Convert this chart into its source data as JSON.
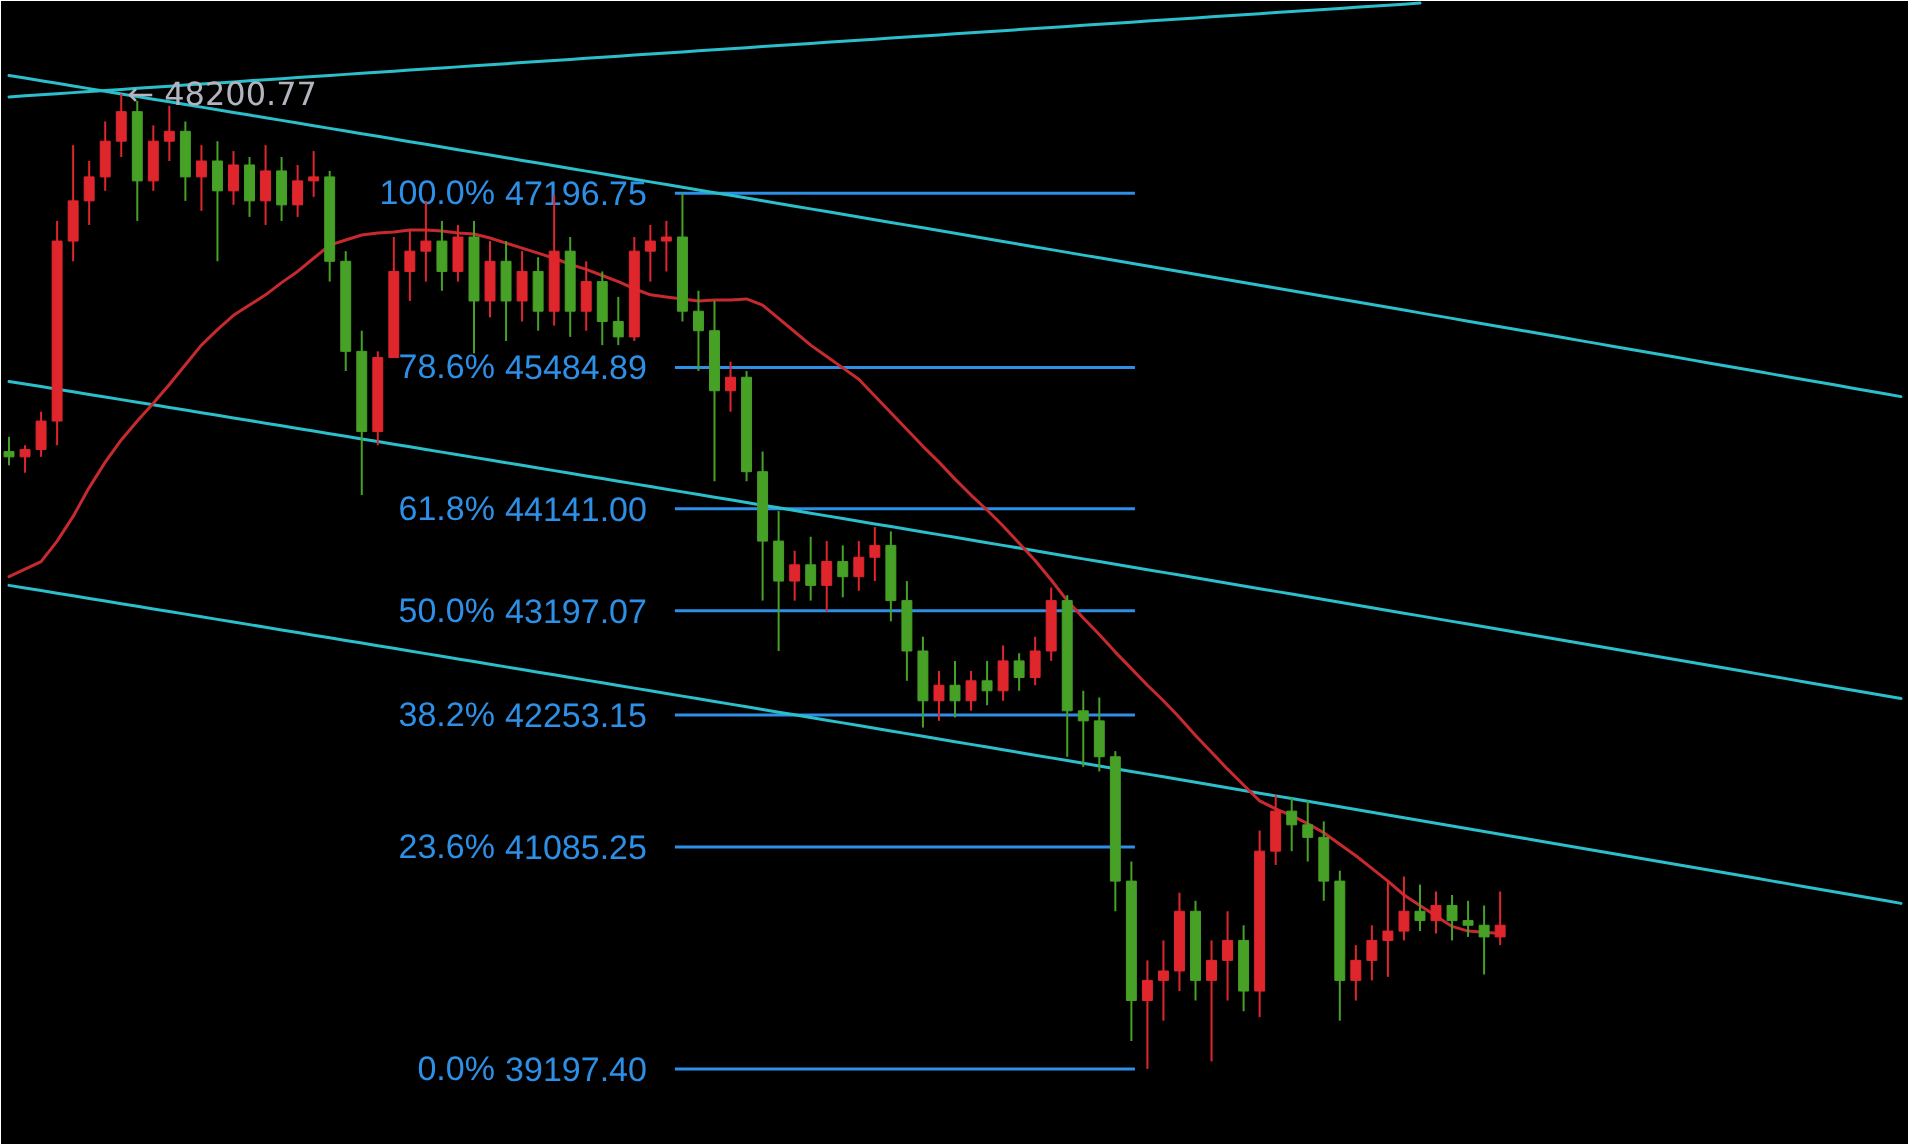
{
  "chart_data": {
    "type": "candlestick",
    "log": true,
    "tick_labels": "y",
    "ylim": [
      38570,
      49160
    ],
    "yticks": [
      47196.75,
      45484.89,
      {
        "value": 44141.0,
        "label": "44141.00"
      },
      43197.07,
      42253.15,
      41085.25,
      {
        "value": 39197.4,
        "label": "39197.40"
      }
    ],
    "ref_lines": [
      {
        "axis": "y",
        "value": 47196.75,
        "color": "#2d8fe6"
      },
      {
        "axis": "y",
        "value": 45484.89,
        "color": "#2d8fe6"
      },
      {
        "axis": "y",
        "value": 44141.0,
        "color": "#2d8fe6"
      },
      {
        "axis": "y",
        "value": 43197.07,
        "color": "#2d8fe6"
      },
      {
        "axis": "y",
        "value": 42253.15,
        "color": "#2d8fe6"
      },
      {
        "axis": "y",
        "value": 41085.25,
        "color": "#2d8fe6"
      },
      {
        "axis": "y",
        "value": 39197.4,
        "color": "#2d8fe6"
      }
    ],
    "categories": [
      null,
      null,
      null,
      null,
      null,
      null,
      null,
      null,
      null,
      null,
      null,
      null,
      null,
      null,
      null,
      null,
      null,
      null,
      null,
      null,
      null,
      null,
      null,
      null,
      null,
      null,
      null,
      null,
      null,
      null,
      null,
      null,
      null,
      null,
      null,
      null,
      null,
      null,
      null,
      null,
      null,
      null,
      null,
      null,
      null,
      null,
      null,
      null,
      null,
      null,
      null,
      null,
      null,
      null,
      null,
      null,
      null,
      null,
      null,
      null,
      null,
      null,
      null,
      null,
      null,
      null,
      null,
      null,
      null,
      null,
      null,
      null,
      null,
      null,
      null,
      null,
      null,
      null,
      null,
      null,
      null,
      null,
      null,
      null,
      null,
      null,
      null,
      null,
      null,
      null,
      null,
      null,
      null,
      null,
      null,
      null,
      null,
      null,
      null,
      null,
      null,
      null,
      null,
      null,
      null,
      null,
      null,
      null,
      null,
      null,
      null,
      null,
      null,
      null,
      null,
      null,
      null,
      null,
      null
    ],
    "ohlc": [
      [
        44680,
        44820,
        44550,
        44630
      ],
      [
        44630,
        44740,
        44480,
        44700
      ],
      [
        44700,
        45060,
        44630,
        44970
      ],
      [
        44970,
        46920,
        44740,
        46720
      ],
      [
        46720,
        47680,
        46520,
        47120
      ],
      [
        47120,
        47520,
        46880,
        47360
      ],
      [
        47360,
        47920,
        47220,
        47720
      ],
      [
        47720,
        48200.77,
        47560,
        48020
      ],
      [
        48020,
        48130,
        46920,
        47320
      ],
      [
        47320,
        47880,
        47220,
        47720
      ],
      [
        47720,
        48080,
        47520,
        47820
      ],
      [
        47820,
        47920,
        47120,
        47360
      ],
      [
        47360,
        47680,
        47020,
        47520
      ],
      [
        47520,
        47720,
        46520,
        47220
      ],
      [
        47220,
        47620,
        47080,
        47480
      ],
      [
        47480,
        47560,
        46960,
        47120
      ],
      [
        47120,
        47680,
        46880,
        47420
      ],
      [
        47420,
        47560,
        46920,
        47080
      ],
      [
        47080,
        47480,
        46960,
        47320
      ],
      [
        47320,
        47620,
        47160,
        47360
      ],
      [
        47360,
        47420,
        46320,
        46520
      ],
      [
        46520,
        46620,
        45450,
        45640
      ],
      [
        45640,
        45840,
        44270,
        44870
      ],
      [
        44870,
        45640,
        44740,
        45580
      ],
      [
        45580,
        46760,
        45580,
        46420
      ],
      [
        46420,
        46820,
        46130,
        46620
      ],
      [
        46620,
        47120,
        46320,
        46720
      ],
      [
        46720,
        46920,
        46230,
        46420
      ],
      [
        46420,
        46880,
        46320,
        46760
      ],
      [
        46760,
        46920,
        45620,
        46130
      ],
      [
        46130,
        46720,
        45970,
        46520
      ],
      [
        46520,
        46720,
        45740,
        46130
      ],
      [
        46130,
        46620,
        45930,
        46420
      ],
      [
        46420,
        46560,
        45840,
        46030
      ],
      [
        46030,
        47180,
        45890,
        46620
      ],
      [
        46620,
        46760,
        45780,
        46030
      ],
      [
        46030,
        46520,
        45840,
        46320
      ],
      [
        46320,
        46420,
        45700,
        45930
      ],
      [
        45930,
        46170,
        45700,
        45780
      ],
      [
        45780,
        46760,
        45740,
        46620
      ],
      [
        46620,
        46880,
        46320,
        46720
      ],
      [
        46720,
        46920,
        46420,
        46760
      ],
      [
        46760,
        47196.75,
        45930,
        46030
      ],
      [
        46030,
        46230,
        45450,
        45840
      ],
      [
        45840,
        46130,
        44400,
        45260
      ],
      [
        45260,
        45540,
        45060,
        45390
      ],
      [
        45390,
        45450,
        44400,
        44490
      ],
      [
        44490,
        44680,
        43290,
        43840
      ],
      [
        43840,
        44120,
        42830,
        43470
      ],
      [
        43470,
        43750,
        43290,
        43620
      ],
      [
        43620,
        43880,
        43290,
        43430
      ],
      [
        43430,
        43840,
        43190,
        43650
      ],
      [
        43650,
        43800,
        43320,
        43510
      ],
      [
        43510,
        43840,
        43380,
        43690
      ],
      [
        43690,
        43970,
        43470,
        43800
      ],
      [
        43800,
        43930,
        43100,
        43290
      ],
      [
        43290,
        43470,
        42560,
        42830
      ],
      [
        42830,
        42960,
        42140,
        42380
      ],
      [
        42380,
        42650,
        42200,
        42520
      ],
      [
        42520,
        42740,
        42230,
        42380
      ],
      [
        42380,
        42650,
        42290,
        42560
      ],
      [
        42560,
        42740,
        42340,
        42470
      ],
      [
        42470,
        42880,
        42380,
        42740
      ],
      [
        42740,
        42810,
        42470,
        42590
      ],
      [
        42590,
        42960,
        42520,
        42830
      ],
      [
        42830,
        43410,
        42740,
        43290
      ],
      [
        43290,
        43340,
        41880,
        42290
      ],
      [
        42290,
        42470,
        41790,
        42200
      ],
      [
        42200,
        42410,
        41750,
        41880
      ],
      [
        41880,
        41930,
        40530,
        40790
      ],
      [
        40790,
        40960,
        39430,
        39770
      ],
      [
        39770,
        40110,
        39197.4,
        39940
      ],
      [
        39940,
        40280,
        39600,
        40020
      ],
      [
        40020,
        40690,
        39850,
        40530
      ],
      [
        40530,
        40620,
        39770,
        39940
      ],
      [
        39940,
        40280,
        39260,
        40110
      ],
      [
        40110,
        40530,
        39770,
        40280
      ],
      [
        40280,
        40410,
        39680,
        39850
      ],
      [
        39850,
        41230,
        39630,
        41050
      ],
      [
        41050,
        41540,
        40930,
        41400
      ],
      [
        41400,
        41520,
        41050,
        41280
      ],
      [
        41280,
        41490,
        40960,
        41170
      ],
      [
        41170,
        41310,
        40620,
        40790
      ],
      [
        40790,
        40880,
        39600,
        39940
      ],
      [
        39940,
        40240,
        39770,
        40110
      ],
      [
        40110,
        40410,
        39940,
        40280
      ],
      [
        40280,
        40790,
        39970,
        40360
      ],
      [
        40360,
        40830,
        40280,
        40530
      ],
      [
        40530,
        40760,
        40360,
        40450
      ],
      [
        40450,
        40700,
        40340,
        40580
      ],
      [
        40580,
        40670,
        40280,
        40450
      ],
      [
        40450,
        40620,
        40310,
        40410
      ],
      [
        40410,
        40580,
        39990,
        40310
      ],
      [
        40310,
        40700,
        40240,
        40410
      ],
      null,
      null,
      null,
      null,
      null,
      null,
      null,
      null,
      null,
      null,
      null,
      null,
      null,
      null,
      null,
      null,
      null,
      null,
      null,
      null,
      null,
      null,
      null,
      null,
      null
    ],
    "colors": [
      "#46a126",
      "#e0262d",
      "#e0262d",
      "#e0262d",
      "#e0262d",
      "#e0262d",
      "#e0262d",
      "#e0262d",
      "#46a126",
      "#e0262d",
      "#e0262d",
      "#46a126",
      "#e0262d",
      "#46a126",
      "#e0262d",
      "#46a126",
      "#e0262d",
      "#46a126",
      "#e0262d",
      "#e0262d",
      "#46a126",
      "#46a126",
      "#46a126",
      "#e0262d",
      "#e0262d",
      "#e0262d",
      "#e0262d",
      "#46a126",
      "#e0262d",
      "#46a126",
      "#e0262d",
      "#46a126",
      "#e0262d",
      "#46a126",
      "#e0262d",
      "#46a126",
      "#e0262d",
      "#46a126",
      "#46a126",
      "#e0262d",
      "#e0262d",
      "#e0262d",
      "#46a126",
      "#46a126",
      "#46a126",
      "#e0262d",
      "#46a126",
      "#46a126",
      "#46a126",
      "#e0262d",
      "#46a126",
      "#e0262d",
      "#46a126",
      "#e0262d",
      "#e0262d",
      "#46a126",
      "#46a126",
      "#46a126",
      "#e0262d",
      "#46a126",
      "#e0262d",
      "#46a126",
      "#e0262d",
      "#46a126",
      "#e0262d",
      "#e0262d",
      "#46a126",
      "#46a126",
      "#46a126",
      "#46a126",
      "#46a126",
      "#e0262d",
      "#e0262d",
      "#e0262d",
      "#46a126",
      "#e0262d",
      "#e0262d",
      "#46a126",
      "#e0262d",
      "#e0262d",
      "#46a126",
      "#46a126",
      "#46a126",
      "#46a126",
      "#e0262d",
      "#e0262d",
      "#e0262d",
      "#e0262d",
      "#46a126",
      "#e0262d",
      "#46a126",
      "#46a126",
      "#46a126",
      "#e0262d",
      null,
      null,
      null,
      null,
      null,
      null,
      null,
      null,
      null,
      null,
      null,
      null,
      null,
      null,
      null,
      null,
      null,
      null,
      null,
      null,
      null,
      null,
      null,
      null,
      null
    ],
    "series": [
      {
        "type": "line",
        "color": "#2bbfcb",
        "values": [
          48170,
          48181,
          48192,
          48203,
          48214,
          48225,
          48236,
          48247,
          48258,
          48269,
          48280,
          48291,
          48302,
          48313,
          48324,
          48335,
          48346,
          48357,
          48368,
          48379,
          48390,
          48401,
          48412,
          48423,
          48434,
          48445,
          48456,
          48467,
          48478,
          48489,
          48500,
          48511,
          48522,
          48533,
          48544,
          48555,
          48566,
          48577,
          48588,
          48599,
          48610,
          48621,
          48632,
          48643,
          48654,
          48665,
          48676,
          48687,
          48698,
          48709,
          48720,
          48731,
          48742,
          48753,
          48764,
          48775,
          48786,
          48797,
          48808,
          48819,
          48830,
          48841,
          48852,
          48863,
          48874,
          48885,
          48896,
          48907,
          48918,
          48929,
          48940,
          48951,
          48962,
          48973,
          48984,
          48995,
          49006,
          49017,
          49028,
          49039,
          49050,
          49061,
          49072,
          49083,
          49094,
          49105,
          49116,
          49127,
          49138,
          null,
          null,
          null,
          null,
          null,
          null,
          null,
          null,
          null,
          null,
          null,
          null,
          null,
          null,
          null,
          null,
          null,
          null,
          null,
          null,
          null,
          null,
          null,
          null,
          null,
          null,
          null,
          null,
          null,
          null
        ]
      },
      {
        "type": "line",
        "color": "#2bbfcb",
        "values": [
          48390,
          48363,
          48336,
          48309,
          48282,
          48255,
          48228,
          48201,
          48174,
          48147,
          48120,
          48093,
          48066,
          48039,
          48012,
          47985,
          47958,
          47931,
          47904,
          47877,
          47850,
          47823,
          47796,
          47769,
          47742,
          47715,
          47688,
          47661,
          47634,
          47607,
          47580,
          47553,
          47526,
          47499,
          47472,
          47445,
          47418,
          47391,
          47364,
          47337,
          47310,
          47283,
          47256,
          47229,
          47202,
          47175,
          47148,
          47121,
          47094,
          47067,
          47040,
          47013,
          46986,
          46959,
          46932,
          46905,
          46878,
          46851,
          46824,
          46797,
          46770,
          46743,
          46716,
          46689,
          46662,
          46635,
          46608,
          46581,
          46554,
          46527,
          46500,
          46473,
          46446,
          46419,
          46392,
          46365,
          46338,
          46311,
          46284,
          46257,
          46230,
          46203,
          46176,
          46149,
          46122,
          46095,
          46068,
          46041,
          46014,
          45987,
          45960,
          45933,
          45906,
          45879,
          45852,
          45825,
          45798,
          45771,
          45744,
          45717,
          45690,
          45663,
          45636,
          45609,
          45582,
          45555,
          45528,
          45501,
          45474,
          45447,
          45420,
          45393,
          45366,
          45339,
          45312,
          45285,
          45258,
          45231,
          45204
        ]
      },
      {
        "type": "line",
        "color": "#2bbfcb",
        "values": [
          45350,
          45325,
          45300,
          45275,
          45250,
          45225,
          45200,
          45175,
          45150,
          45125,
          45100,
          45075,
          45050,
          45025,
          45000,
          44975,
          44950,
          44925,
          44900,
          44875,
          44850,
          44825,
          44800,
          44775,
          44750,
          44725,
          44700,
          44675,
          44650,
          44625,
          44600,
          44575,
          44550,
          44525,
          44500,
          44475,
          44450,
          44425,
          44400,
          44375,
          44350,
          44325,
          44300,
          44275,
          44250,
          44225,
          44200,
          44175,
          44150,
          44125,
          44100,
          44075,
          44050,
          44025,
          44000,
          43975,
          43950,
          43925,
          43900,
          43875,
          43850,
          43825,
          43800,
          43775,
          43750,
          43725,
          43700,
          43675,
          43650,
          43625,
          43600,
          43575,
          43550,
          43525,
          43500,
          43475,
          43450,
          43425,
          43400,
          43375,
          43350,
          43325,
          43300,
          43275,
          43250,
          43225,
          43200,
          43175,
          43150,
          43125,
          43100,
          43075,
          43050,
          43025,
          43000,
          42975,
          42950,
          42925,
          42900,
          42875,
          42850,
          42825,
          42800,
          42775,
          42750,
          42725,
          42700,
          42675,
          42650,
          42625,
          42600,
          42575,
          42550,
          42525,
          42500,
          42475,
          42450,
          42425,
          42400
        ]
      },
      {
        "type": "line",
        "color": "#2bbfcb",
        "values": [
          43430,
          43406,
          43382,
          43358,
          43334,
          43310,
          43286,
          43262,
          43238,
          43214,
          43190,
          43166,
          43142,
          43118,
          43094,
          43070,
          43046,
          43022,
          42998,
          42974,
          42950,
          42926,
          42902,
          42878,
          42854,
          42830,
          42806,
          42782,
          42758,
          42734,
          42710,
          42686,
          42662,
          42638,
          42614,
          42590,
          42566,
          42542,
          42518,
          42494,
          42470,
          42446,
          42422,
          42398,
          42374,
          42350,
          42326,
          42302,
          42278,
          42254,
          42230,
          42206,
          42182,
          42158,
          42134,
          42110,
          42086,
          42062,
          42038,
          42014,
          41990,
          41966,
          41942,
          41918,
          41894,
          41870,
          41846,
          41822,
          41798,
          41774,
          41750,
          41726,
          41702,
          41678,
          41654,
          41630,
          41606,
          41582,
          41558,
          41534,
          41510,
          41486,
          41462,
          41438,
          41414,
          41390,
          41366,
          41342,
          41318,
          41294,
          41270,
          41246,
          41222,
          41198,
          41174,
          41150,
          41126,
          41102,
          41078,
          41054,
          41030,
          41006,
          40982,
          40958,
          40934,
          40910,
          40886,
          40862,
          40838,
          40814,
          40790,
          40766,
          40742,
          40718,
          40694,
          40670,
          40646,
          40622,
          40598
        ]
      },
      {
        "type": "line",
        "color": "#c62a2f",
        "values": [
          43510,
          43580,
          43650,
          43840,
          44070,
          44340,
          44580,
          44790,
          44970,
          45140,
          45320,
          45510,
          45700,
          45850,
          45990,
          46090,
          46190,
          46310,
          46420,
          46550,
          46680,
          46730,
          46780,
          46800,
          46810,
          46830,
          46830,
          46820,
          46800,
          46790,
          46750,
          46700,
          46650,
          46600,
          46550,
          46490,
          46440,
          46380,
          46320,
          46250,
          46190,
          46170,
          46150,
          46130,
          46140,
          46140,
          46150,
          46090,
          45960,
          45830,
          45700,
          45590,
          45480,
          45370,
          45210,
          45050,
          44890,
          44730,
          44580,
          44420,
          44270,
          44130,
          43980,
          43820,
          43660,
          43480,
          43290,
          43130,
          42980,
          42820,
          42670,
          42520,
          42380,
          42230,
          42070,
          41920,
          41770,
          41630,
          41490,
          41420,
          41360,
          41290,
          41210,
          41110,
          41010,
          40900,
          40790,
          40670,
          40580,
          40490,
          40400,
          40360,
          40350,
          40340,
          null,
          null,
          null,
          null,
          null,
          null,
          null,
          null,
          null,
          null,
          null,
          null,
          null,
          null,
          null,
          null,
          null,
          null,
          null,
          null,
          null,
          null,
          null,
          null,
          null
        ]
      }
    ],
    "annotations": [
      {
        "text": "← 48200.77",
        "y": 48200.77
      },
      "100.0%",
      "78.6%",
      "61.8%",
      "50.0%",
      "38.2%",
      "23.6%",
      "0.0%"
    ]
  }
}
